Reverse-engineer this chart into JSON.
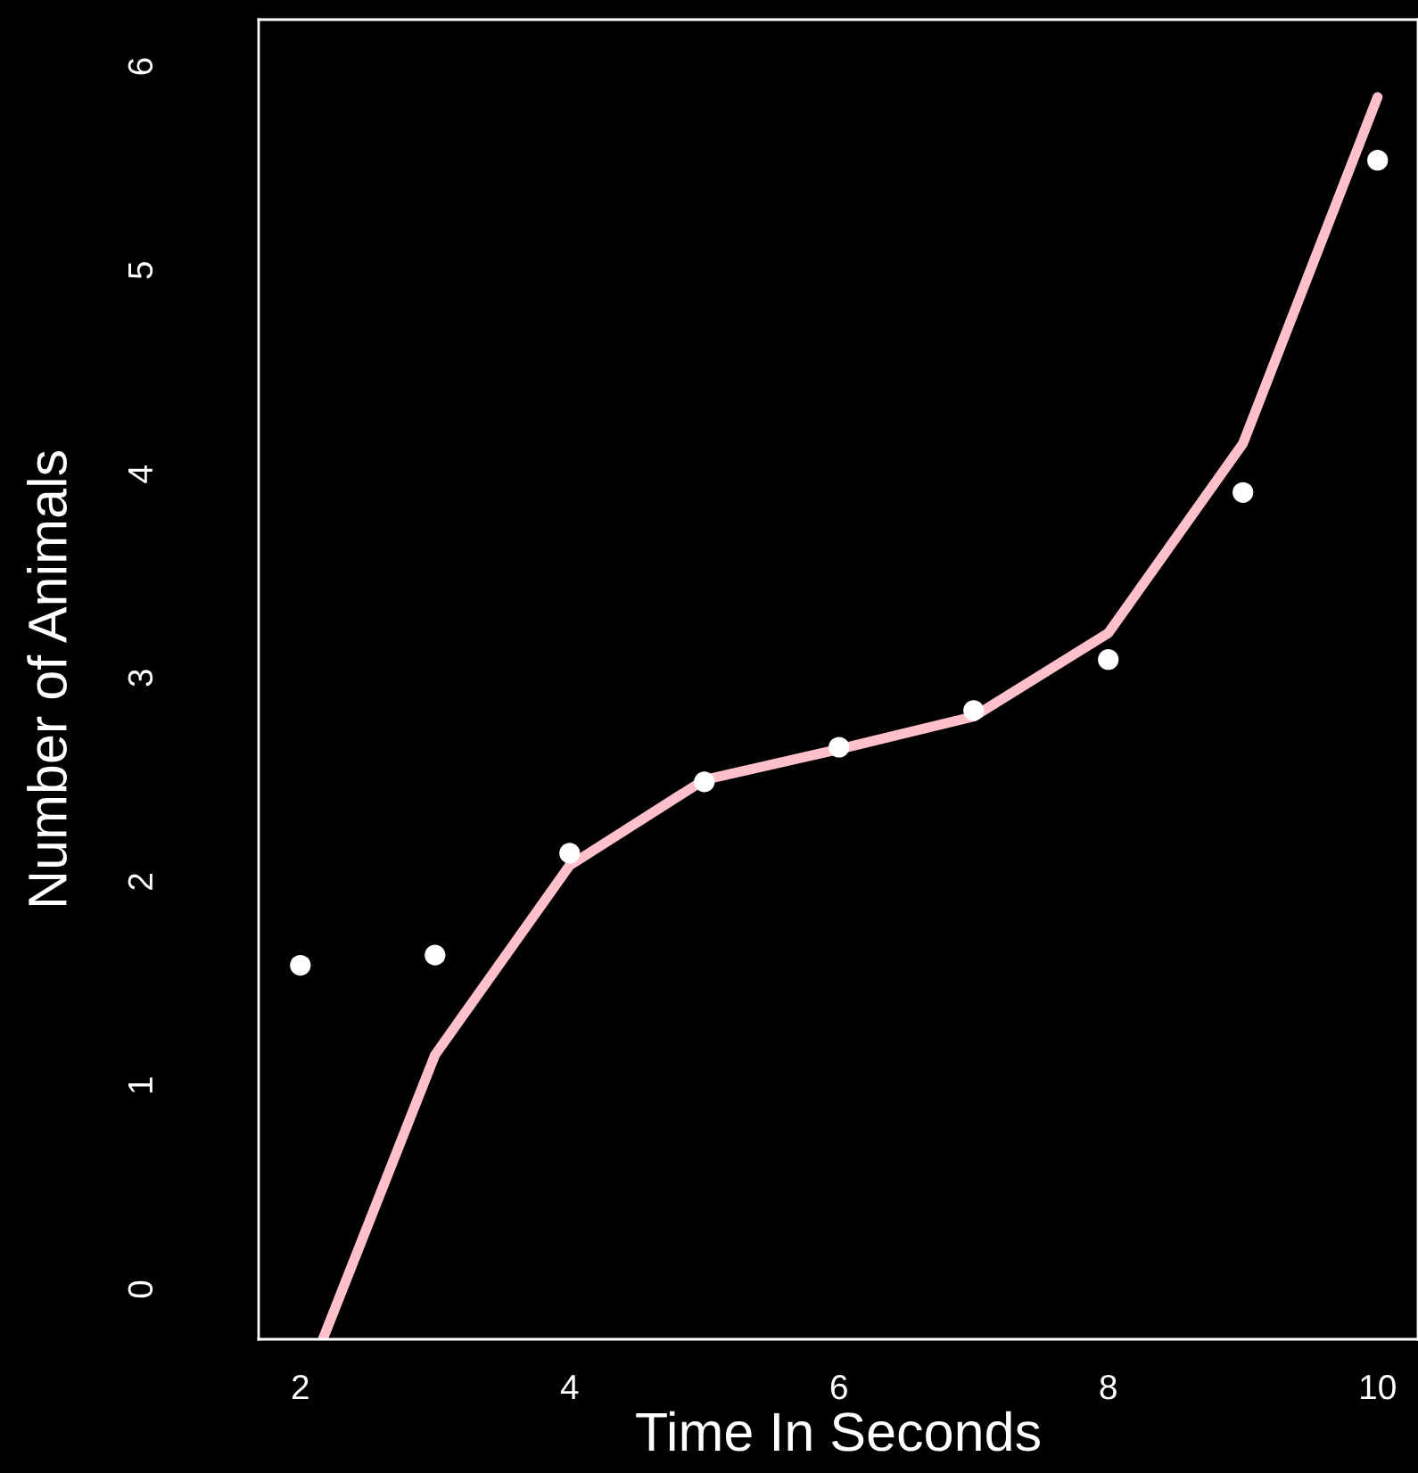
{
  "chart_data": {
    "type": "scatter",
    "xlabel": "Time In Seconds",
    "ylabel": "Number of Animals",
    "xlim": [
      1.69,
      10.3
    ],
    "ylim": [
      -0.245,
      6.23
    ],
    "xticks": [
      2,
      4,
      6,
      8,
      10
    ],
    "yticks": [
      0,
      1,
      2,
      3,
      4,
      5,
      6
    ],
    "grid": false,
    "legend": false,
    "series": [
      {
        "color": "#ffffff",
        "marker": "circle",
        "x": [
          2,
          3,
          4,
          5,
          6,
          7,
          8,
          9,
          10
        ],
        "values": [
          1.59,
          1.64,
          2.14,
          2.49,
          2.66,
          2.84,
          3.09,
          3.91,
          5.54
        ]
      },
      {
        "type": "line",
        "color": "#ffc0cb",
        "marker": "none",
        "line_style": "solid",
        "x": [
          2.17,
          3,
          4,
          5,
          6,
          7,
          8,
          9,
          10
        ],
        "values": [
          -0.24,
          1.15,
          2.08,
          2.5,
          2.65,
          2.81,
          3.22,
          4.15,
          5.85
        ]
      }
    ]
  }
}
